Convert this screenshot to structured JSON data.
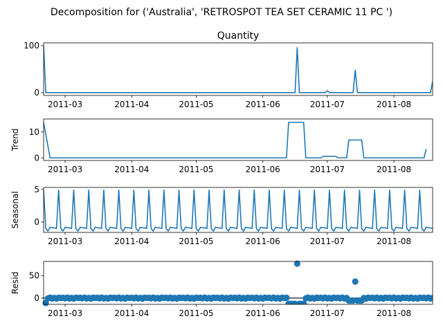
{
  "figure_title": "Decomposition for ('Australia', 'RETROSPOT TEA SET CERAMIC 11 PC ')",
  "colors": {
    "line": "#1f77b4",
    "marker": "#1f77b4",
    "zero_line": "#000000",
    "axes": "#000000"
  },
  "chart_data": [
    {
      "type": "line",
      "title": "Quantity",
      "ylabel": "",
      "ylim": [
        -6,
        106
      ],
      "y_ticks": [
        0,
        100
      ],
      "x_start": "2011-02-19",
      "x_end": "2011-08-19",
      "x_ticks": [
        "2011-03",
        "2011-04",
        "2011-05",
        "2011-06",
        "2011-07",
        "2011-08"
      ],
      "grid": false,
      "points": [
        [
          "2011-02-19",
          100
        ],
        [
          "2011-02-20",
          0
        ],
        [
          "2011-06-16",
          0
        ],
        [
          "2011-06-17",
          96
        ],
        [
          "2011-06-18",
          0
        ],
        [
          "2011-06-30",
          0
        ],
        [
          "2011-07-01",
          4
        ],
        [
          "2011-07-02",
          0
        ],
        [
          "2011-07-13",
          0
        ],
        [
          "2011-07-14",
          48
        ],
        [
          "2011-07-15",
          0
        ],
        [
          "2011-08-18",
          0
        ],
        [
          "2011-08-19",
          24
        ]
      ]
    },
    {
      "type": "line",
      "title": "",
      "ylabel": "Trend",
      "ylim": [
        -1,
        15
      ],
      "y_ticks": [
        0,
        10
      ],
      "grid": false,
      "points": [
        [
          "2011-02-19",
          13.7
        ],
        [
          "2011-02-22",
          0
        ],
        [
          "2011-06-12",
          0
        ],
        [
          "2011-06-13",
          13.7
        ],
        [
          "2011-06-20",
          13.7
        ],
        [
          "2011-06-21",
          0
        ],
        [
          "2011-06-28",
          0
        ],
        [
          "2011-06-29",
          0.6
        ],
        [
          "2011-07-05",
          0.6
        ],
        [
          "2011-07-06",
          0
        ],
        [
          "2011-07-10",
          0
        ],
        [
          "2011-07-11",
          6.9
        ],
        [
          "2011-07-17",
          6.9
        ],
        [
          "2011-07-18",
          0
        ],
        [
          "2011-08-15",
          0
        ],
        [
          "2011-08-16",
          3.4
        ]
      ]
    },
    {
      "type": "line",
      "title": "",
      "ylabel": "Seasonal",
      "ylim": [
        -1.6,
        5.3
      ],
      "y_ticks": [
        0,
        5
      ],
      "grid": false,
      "period_days": 7,
      "first_peak": "2011-02-19",
      "weekly_pattern": [
        4.9,
        -1.0,
        -1.4,
        -0.8,
        -0.9,
        -0.9,
        -1.0
      ]
    },
    {
      "type": "scatter",
      "title": "",
      "ylabel": "Resid",
      "ylim": [
        -14,
        82
      ],
      "y_ticks": [
        0,
        50
      ],
      "grid": false,
      "zero_line": true,
      "baseline_range": [
        "2011-02-20",
        "2011-08-19"
      ],
      "baseline_values": [
        0.8,
        -0.6,
        1.1,
        -0.9,
        0.3,
        -1.2,
        0.9,
        0.2
      ],
      "segments": [
        {
          "from": "2011-06-13",
          "to": "2011-06-20",
          "value": -12.8
        },
        {
          "from": "2011-07-11",
          "to": "2011-07-17",
          "value": -5.5
        }
      ],
      "points": [
        [
          "2011-02-20",
          -11
        ],
        [
          "2011-06-17",
          77
        ],
        [
          "2011-07-14",
          37
        ]
      ]
    }
  ]
}
